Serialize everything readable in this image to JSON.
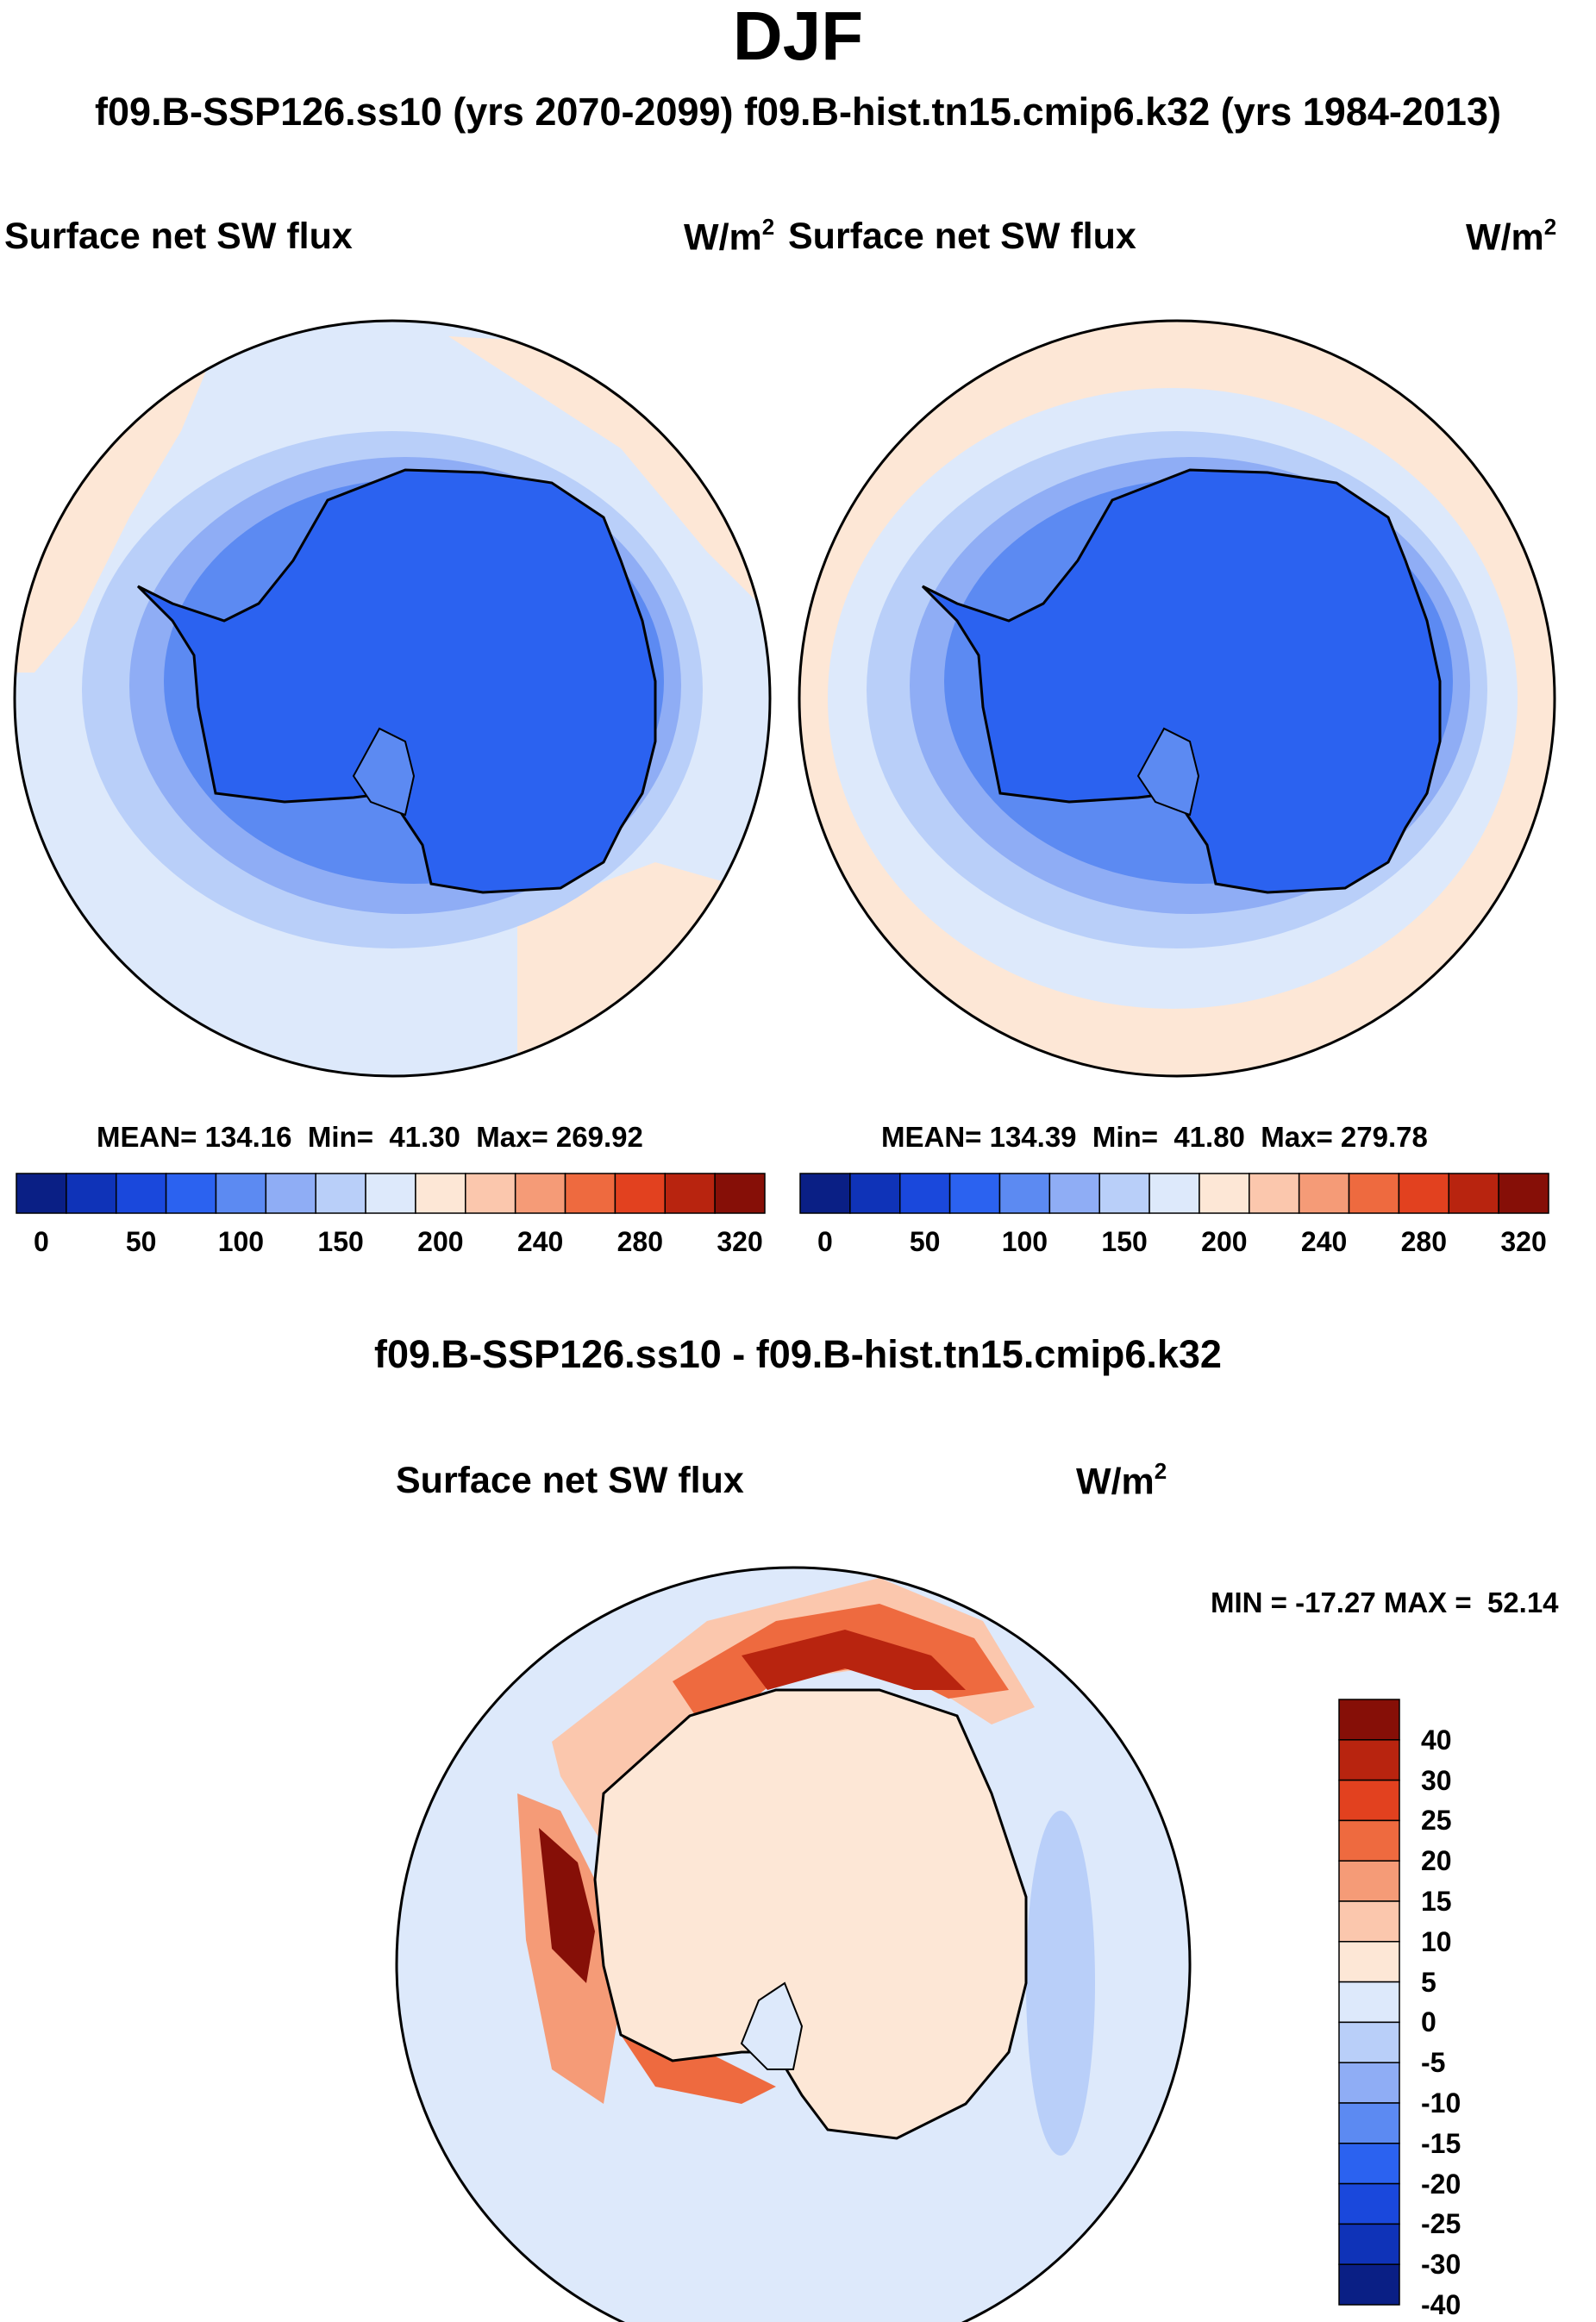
{
  "title": "DJF",
  "subtitle": "f09.B-SSP126.ss10 (yrs 2070-2099)  f09.B-hist.tn15.cmip6.k32 (yrs 1984-2013)",
  "variable": "Surface net SW flux",
  "units_base": "W/m",
  "units_exp": "2",
  "panels": [
    {
      "case": "f09.B-SSP126.ss10",
      "years": "2070-2099",
      "mean_label": "MEAN= 134.16",
      "min_label": "Min=  41.30",
      "max_label": "Max= 269.92",
      "mean": 134.16,
      "min": 41.3,
      "max": 269.92
    },
    {
      "case": "f09.B-hist.tn15.cmip6.k32",
      "years": "1984-2013",
      "mean_label": "MEAN= 134.39",
      "min_label": "Min=  41.80",
      "max_label": "Max= 279.78",
      "mean": 134.39,
      "min": 41.8,
      "max": 279.78
    }
  ],
  "abs_colorbar": {
    "colors": [
      "#0a1f85",
      "#0f33b8",
      "#1a48dc",
      "#2b62f0",
      "#5c8af2",
      "#8fadf5",
      "#b9cff9",
      "#dde9fb",
      "#fde7d6",
      "#fbc7ad",
      "#f59b77",
      "#ee6a3f",
      "#e2411f",
      "#b8240f",
      "#860f07"
    ],
    "tick_labels": [
      "0",
      "50",
      "100",
      "150",
      "200",
      "240",
      "280",
      "320"
    ]
  },
  "diff": {
    "title": "f09.B-SSP126.ss10 - f09.B-hist.tn15.cmip6.k32",
    "minmax_label": "MIN = -17.27 MAX =  52.14",
    "min": -17.27,
    "max": 52.14,
    "colors_top_down": [
      "#860f07",
      "#b8240f",
      "#e2411f",
      "#ee6a3f",
      "#f59b77",
      "#fbc7ad",
      "#fde7d6",
      "#dde9fb",
      "#b9cff9",
      "#8fadf5",
      "#5c8af2",
      "#2b62f0",
      "#1a48dc",
      "#0f33b8",
      "#0a1f85"
    ],
    "tick_labels": [
      "40",
      "30",
      "25",
      "20",
      "15",
      "10",
      "5",
      "0",
      "-5",
      "-10",
      "-15",
      "-20",
      "-25",
      "-30",
      "-40"
    ]
  },
  "map_colors": {
    "ocean": "#dde9fb",
    "warm": "#fde7d6",
    "band1": "#b9cff9",
    "band2": "#8fadf5",
    "band3": "#5c8af2",
    "ice": "#2b62f0",
    "ice_dark": "#1a48dc",
    "coast": "#000000",
    "diff_pos1": "#fbc7ad",
    "diff_pos2": "#f59b77",
    "diff_pos3": "#ee6a3f",
    "diff_pos4": "#e2411f",
    "diff_pos5": "#860f07"
  }
}
